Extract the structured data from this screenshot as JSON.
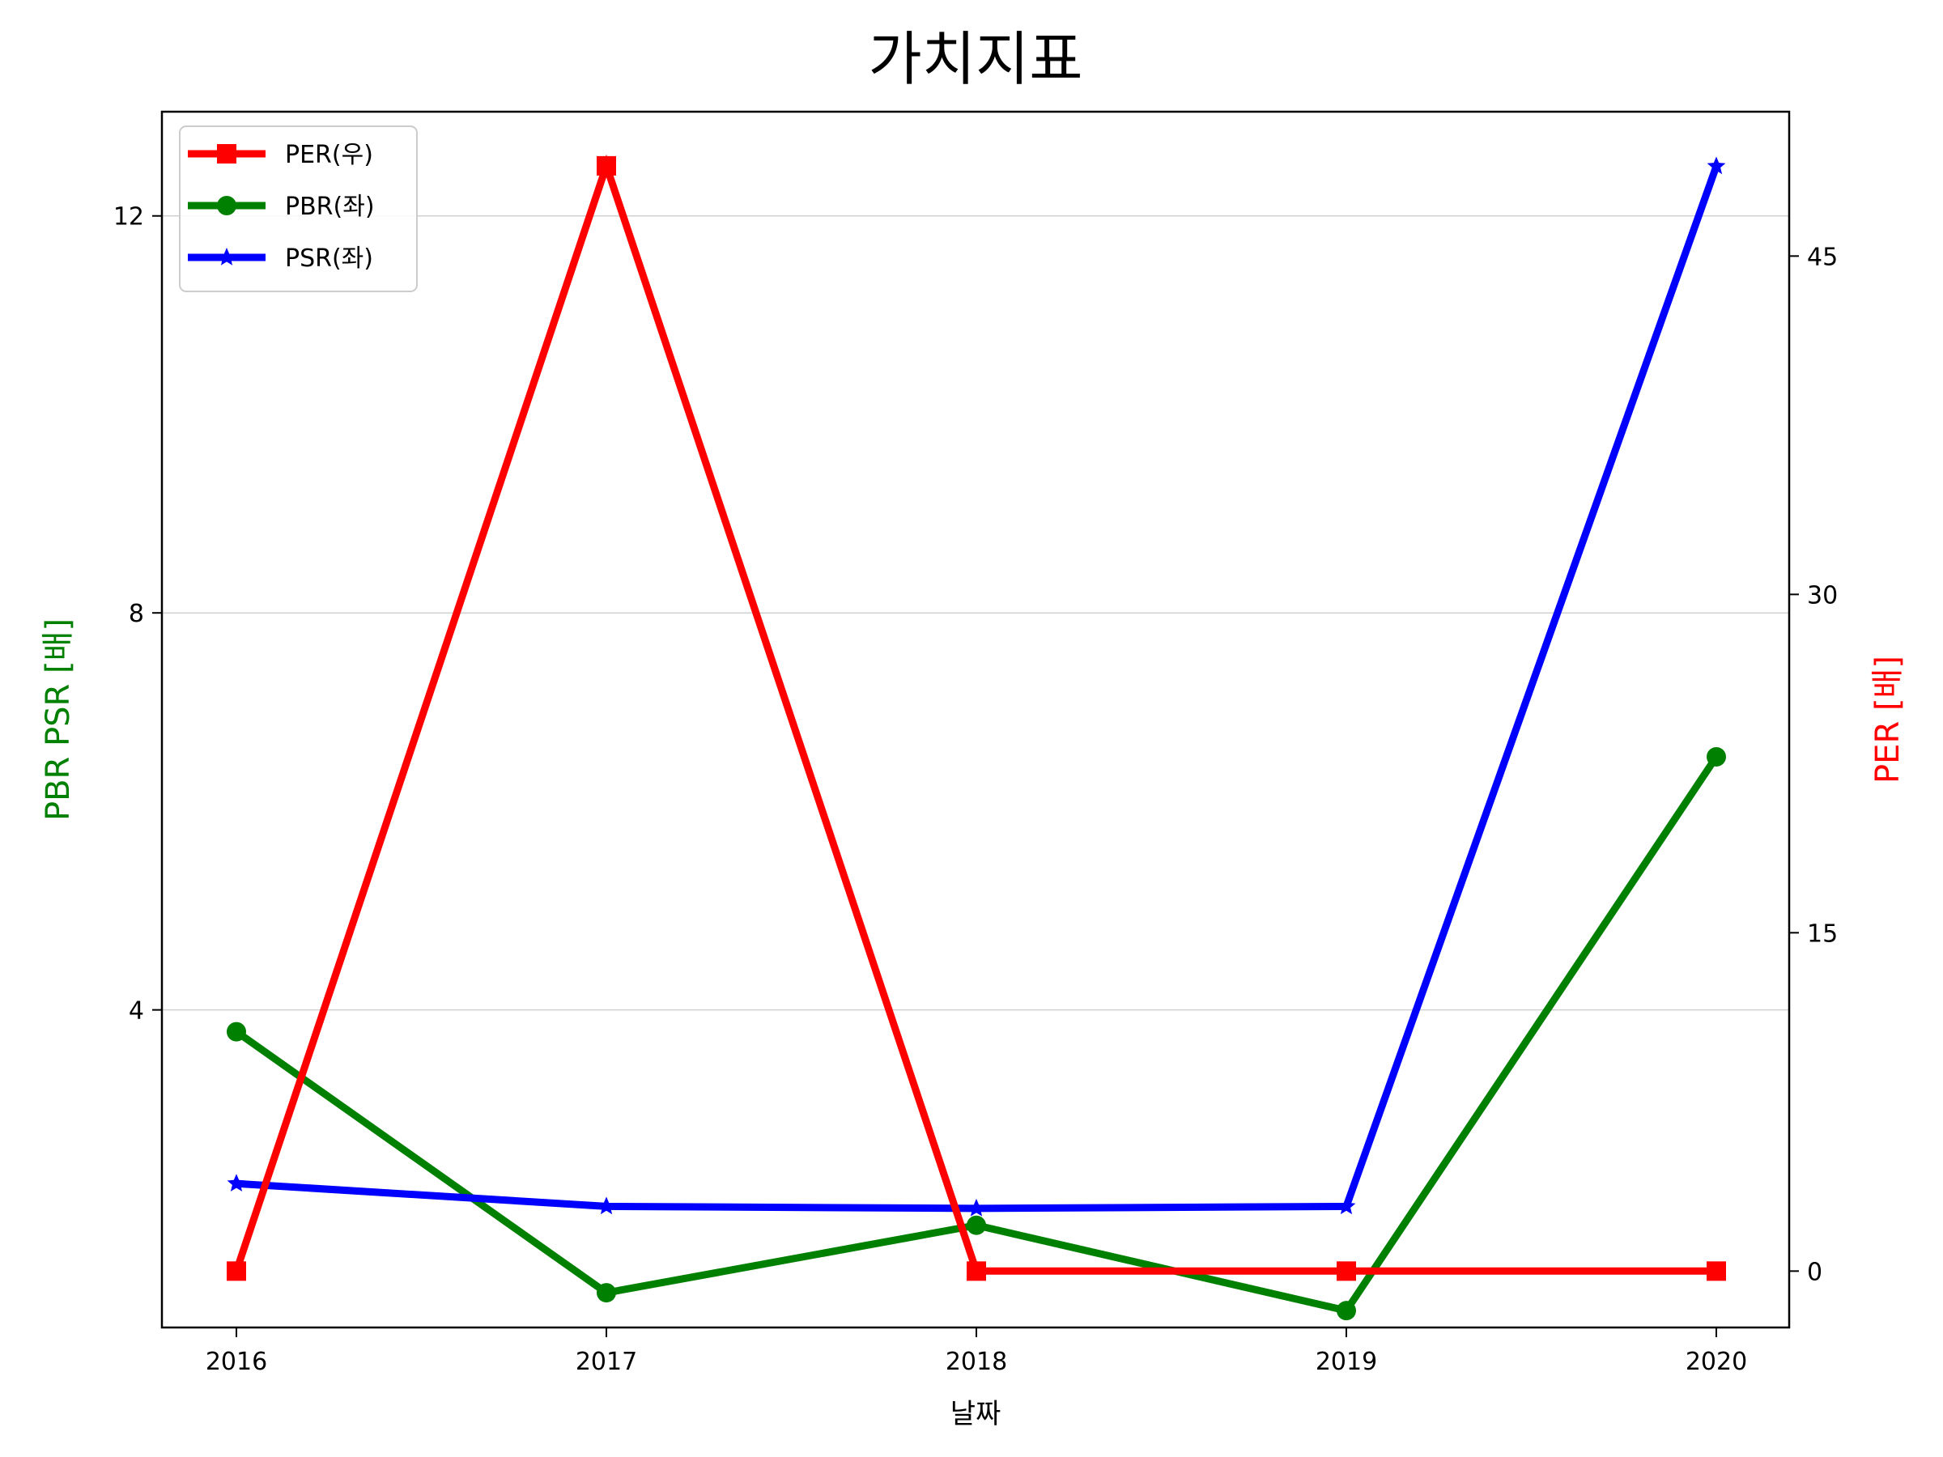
{
  "chart_data": {
    "type": "line",
    "title": "가치지표",
    "xlabel": "날짜",
    "ylabel_left": "PBR PSR [배]",
    "ylabel_right": "PER [배]",
    "ylabel_left_color": "#008000",
    "ylabel_right_color": "#ff0000",
    "categories": [
      "2016",
      "2017",
      "2018",
      "2019",
      "2020"
    ],
    "left_axis": {
      "ylim": [
        0.8,
        13.05
      ],
      "ticks": [
        4,
        8,
        12
      ],
      "grid": true
    },
    "right_axis": {
      "ylim": [
        -2.5,
        51.4
      ],
      "ticks": [
        0,
        15,
        30,
        45
      ]
    },
    "legend_placement": "upper-left",
    "series": [
      {
        "name": "PER(우)",
        "axis": "right",
        "color": "#ff0000",
        "marker": "square",
        "values": [
          0,
          49,
          0,
          0,
          0
        ]
      },
      {
        "name": "PBR(좌)",
        "axis": "left",
        "color": "#008000",
        "marker": "circle",
        "values": [
          3.78,
          1.15,
          1.83,
          0.97,
          6.55
        ]
      },
      {
        "name": "PSR(좌)",
        "axis": "left",
        "color": "#0000ff",
        "marker": "star",
        "values": [
          2.25,
          2.02,
          2.0,
          2.02,
          12.5
        ]
      }
    ]
  }
}
